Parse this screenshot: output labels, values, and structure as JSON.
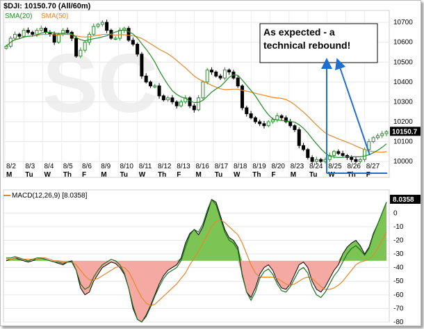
{
  "chart_data": [
    {
      "type": "candlestick",
      "title": "$DJI: 10150.70 (All/60m)",
      "last_value_label": "10150.7",
      "ylim": [
        9920,
        10760
      ],
      "yticks": [
        10000,
        10100,
        10200,
        10300,
        10400,
        10500,
        10600,
        10700
      ],
      "date_labels": [
        "8/2",
        "8/3",
        "8/4",
        "8/5",
        "8/6",
        "8/9",
        "8/10",
        "8/11",
        "8/12",
        "8/13",
        "8/16",
        "8/17",
        "8/18",
        "8/19",
        "8/20",
        "8/23",
        "8/24",
        "8/25",
        "8/26",
        "8/27"
      ],
      "weekday_labels": [
        "M",
        "Tu",
        "W",
        "Th",
        "F",
        "M",
        "Tu",
        "W",
        "Th",
        "F",
        "M",
        "Tu",
        "W",
        "Th",
        "F",
        "M",
        "Tu",
        "W",
        "Th",
        "F"
      ],
      "close": [
        10580,
        10620,
        10640,
        10630,
        10660,
        10650,
        10640,
        10660,
        10670,
        10650,
        10640,
        10600,
        10640,
        10660,
        10650,
        10620,
        10530,
        10560,
        10600,
        10640,
        10680,
        10690,
        10700,
        10660,
        10620,
        10620,
        10660,
        10670,
        10610,
        10590,
        10540,
        10430,
        10400,
        10380,
        10380,
        10330,
        10310,
        10320,
        10300,
        10280,
        10300,
        10320,
        10280,
        10260,
        10320,
        10400,
        10460,
        10450,
        10430,
        10420,
        10460,
        10450,
        10420,
        10380,
        10270,
        10240,
        10220,
        10200,
        10190,
        10180,
        10200,
        10210,
        10230,
        10220,
        10200,
        10180,
        10160,
        10080,
        10060,
        10020,
        10000,
        10010,
        10000,
        10010,
        10030,
        10050,
        10040,
        10030,
        10020,
        10010,
        10000,
        10010,
        10060,
        10100,
        10120,
        10130,
        10140,
        10150
      ],
      "sma20_label": "SMA(20)",
      "sma50_label": "SMA(50)",
      "colors": {
        "up": "#2e8b2e",
        "down": "#000000",
        "sma20": "#228b22",
        "sma50": "#e8862a",
        "annotation": "#1f6fd1"
      },
      "annotation": {
        "line1": "As expected - a",
        "line2": "technical rebound!"
      }
    },
    {
      "type": "area",
      "title": "MACD(12,26,9) [8.0358]",
      "last_value_label": "8.0358",
      "ylim": [
        -80,
        17
      ],
      "yticks": [
        0,
        -10,
        -20,
        -30,
        -40,
        -50,
        -60,
        -70,
        -80
      ],
      "baseline": -35,
      "histogram": [
        -35,
        -34,
        -33,
        -34,
        -35,
        -36,
        -35,
        -34,
        -33,
        -34,
        -35,
        -36,
        -37,
        -38,
        -36,
        -35,
        -42,
        -55,
        -60,
        -58,
        -50,
        -45,
        -40,
        -38,
        -36,
        -37,
        -40,
        -45,
        -55,
        -70,
        -78,
        -80,
        -75,
        -68,
        -60,
        -52,
        -46,
        -42,
        -40,
        -38,
        -33,
        -22,
        -15,
        -12,
        -16,
        -10,
        0,
        10,
        8,
        -2,
        -12,
        -18,
        -20,
        -25,
        -45,
        -58,
        -62,
        -55,
        -45,
        -40,
        -38,
        -42,
        -50,
        -55,
        -56,
        -52,
        -45,
        -38,
        -36,
        -40,
        -50,
        -56,
        -58,
        -54,
        -48,
        -42,
        -38,
        -30,
        -25,
        -22,
        -20,
        -24,
        -30,
        -25,
        -15,
        -8,
        0,
        8
      ],
      "macd_line": [
        -33,
        -33,
        -32,
        -33,
        -34,
        -35,
        -34,
        -33,
        -33,
        -34,
        -35,
        -36,
        -36,
        -37,
        -36,
        -36,
        -42,
        -52,
        -56,
        -54,
        -47,
        -42,
        -38,
        -36,
        -34,
        -35,
        -38,
        -44,
        -55,
        -68,
        -78,
        -80,
        -76,
        -69,
        -61,
        -54,
        -48,
        -44,
        -42,
        -40,
        -35,
        -25,
        -16,
        -12,
        -14,
        -8,
        2,
        10,
        6,
        -4,
        -14,
        -20,
        -22,
        -27,
        -46,
        -58,
        -64,
        -58,
        -48,
        -43,
        -41,
        -45,
        -52,
        -57,
        -58,
        -54,
        -48,
        -42,
        -40,
        -44,
        -54,
        -60,
        -62,
        -58,
        -52,
        -46,
        -42,
        -36,
        -30,
        -26,
        -24,
        -27,
        -31,
        -26,
        -16,
        -8,
        0,
        8
      ],
      "signal_line": [
        -34,
        -34,
        -33,
        -33,
        -34,
        -34,
        -34,
        -34,
        -33,
        -33,
        -34,
        -35,
        -35,
        -36,
        -36,
        -36,
        -38,
        -42,
        -46,
        -49,
        -49,
        -48,
        -46,
        -44,
        -42,
        -40,
        -39,
        -40,
        -43,
        -49,
        -56,
        -62,
        -66,
        -68,
        -67,
        -64,
        -61,
        -58,
        -55,
        -52,
        -48,
        -44,
        -38,
        -33,
        -28,
        -22,
        -16,
        -10,
        -6,
        -5,
        -7,
        -10,
        -13,
        -16,
        -22,
        -30,
        -38,
        -44,
        -47,
        -47,
        -47,
        -47,
        -48,
        -50,
        -52,
        -53,
        -52,
        -50,
        -48,
        -47,
        -48,
        -51,
        -54,
        -56,
        -56,
        -55,
        -53,
        -50,
        -46,
        -42,
        -38,
        -36,
        -35,
        -34,
        -31,
        -26,
        -20,
        -14
      ],
      "colors": {
        "positive": "#7cc454",
        "negative": "#f5a9a3",
        "macd": "#1e6e1e",
        "signal": "#e8862a",
        "badge": "#000000"
      }
    }
  ]
}
